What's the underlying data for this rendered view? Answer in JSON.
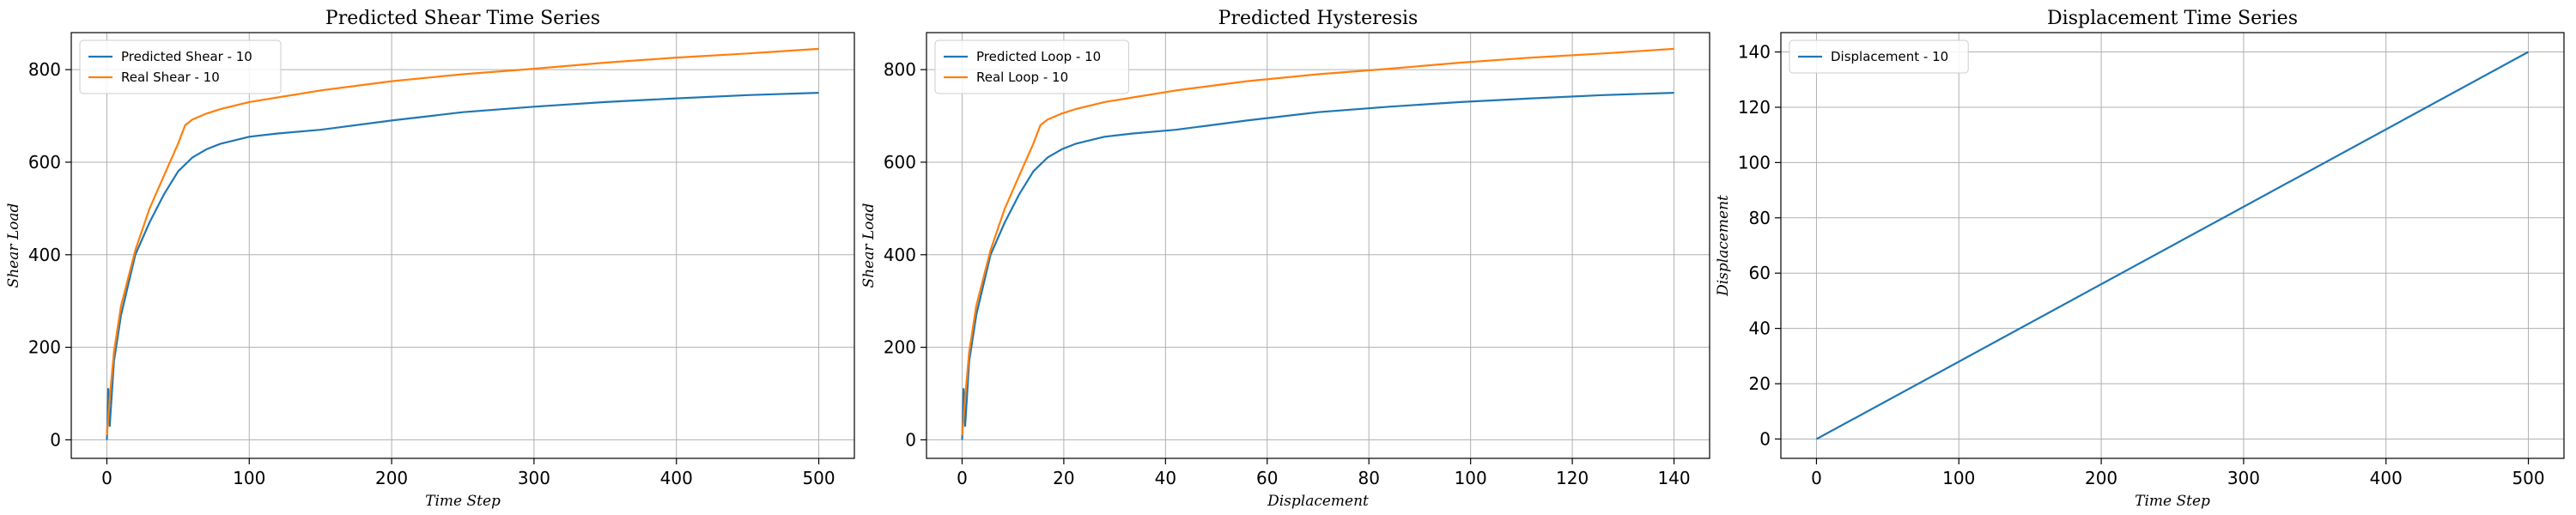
{
  "chart_data": [
    {
      "type": "line",
      "title": "Predicted Shear Time Series",
      "xlabel": "Time Step",
      "ylabel": "Shear Load",
      "xlim": [
        -25,
        525
      ],
      "ylim": [
        -40,
        880
      ],
      "xticks": [
        0,
        100,
        200,
        300,
        400,
        500
      ],
      "yticks": [
        0,
        200,
        400,
        600,
        800
      ],
      "grid": true,
      "legend": "upper-left",
      "series": [
        {
          "name": "Predicted Shear - 10",
          "color": "#1f77b4",
          "x": [
            0,
            1,
            2,
            5,
            10,
            20,
            30,
            40,
            50,
            60,
            70,
            80,
            100,
            120,
            150,
            200,
            250,
            300,
            350,
            400,
            450,
            500
          ],
          "y": [
            0,
            110,
            30,
            170,
            270,
            400,
            470,
            530,
            580,
            610,
            628,
            640,
            655,
            662,
            670,
            690,
            708,
            720,
            730,
            738,
            745,
            750
          ]
        },
        {
          "name": "Real Shear - 10",
          "color": "#ff7f0e",
          "x": [
            0,
            2,
            5,
            10,
            20,
            30,
            40,
            50,
            55,
            60,
            70,
            80,
            100,
            120,
            150,
            200,
            250,
            300,
            350,
            400,
            450,
            500
          ],
          "y": [
            10,
            90,
            190,
            290,
            410,
            500,
            570,
            640,
            680,
            692,
            705,
            715,
            730,
            740,
            755,
            775,
            790,
            802,
            815,
            826,
            835,
            845
          ]
        }
      ]
    },
    {
      "type": "line",
      "title": "Predicted Hysteresis",
      "xlabel": "Displacement",
      "ylabel": "Shear Load",
      "xlim": [
        -7,
        147
      ],
      "ylim": [
        -40,
        880
      ],
      "xticks": [
        0,
        20,
        40,
        60,
        80,
        100,
        120,
        140
      ],
      "yticks": [
        0,
        200,
        400,
        600,
        800
      ],
      "grid": true,
      "legend": "upper-left",
      "series": [
        {
          "name": "Predicted Loop - 10",
          "color": "#1f77b4",
          "x": [
            0,
            0.3,
            0.6,
            1.4,
            2.8,
            5.6,
            8.4,
            11.2,
            14,
            16.8,
            19.6,
            22.4,
            28,
            33.6,
            42,
            56,
            70,
            84,
            98,
            112,
            126,
            140
          ],
          "y": [
            0,
            110,
            30,
            170,
            270,
            400,
            470,
            530,
            580,
            610,
            628,
            640,
            655,
            662,
            670,
            690,
            708,
            720,
            730,
            738,
            745,
            750
          ]
        },
        {
          "name": "Real Loop - 10",
          "color": "#ff7f0e",
          "x": [
            0,
            0.6,
            1.4,
            2.8,
            5.6,
            8.4,
            11.2,
            14,
            15.4,
            16.8,
            19.6,
            22.4,
            28,
            33.6,
            42,
            56,
            70,
            84,
            98,
            112,
            126,
            140
          ],
          "y": [
            10,
            90,
            190,
            290,
            410,
            500,
            570,
            640,
            680,
            692,
            705,
            715,
            730,
            740,
            755,
            775,
            790,
            802,
            815,
            826,
            835,
            845
          ]
        }
      ]
    },
    {
      "type": "line",
      "title": "Displacement Time Series",
      "xlabel": "Time Step",
      "ylabel": "Displacement",
      "xlim": [
        -25,
        525
      ],
      "ylim": [
        -7,
        147
      ],
      "xticks": [
        0,
        100,
        200,
        300,
        400,
        500
      ],
      "yticks": [
        0,
        20,
        40,
        60,
        80,
        100,
        120,
        140
      ],
      "grid": true,
      "legend": "upper-left",
      "series": [
        {
          "name": "Displacement - 10",
          "color": "#1f77b4",
          "x": [
            0,
            500
          ],
          "y": [
            0,
            140
          ]
        }
      ]
    }
  ]
}
